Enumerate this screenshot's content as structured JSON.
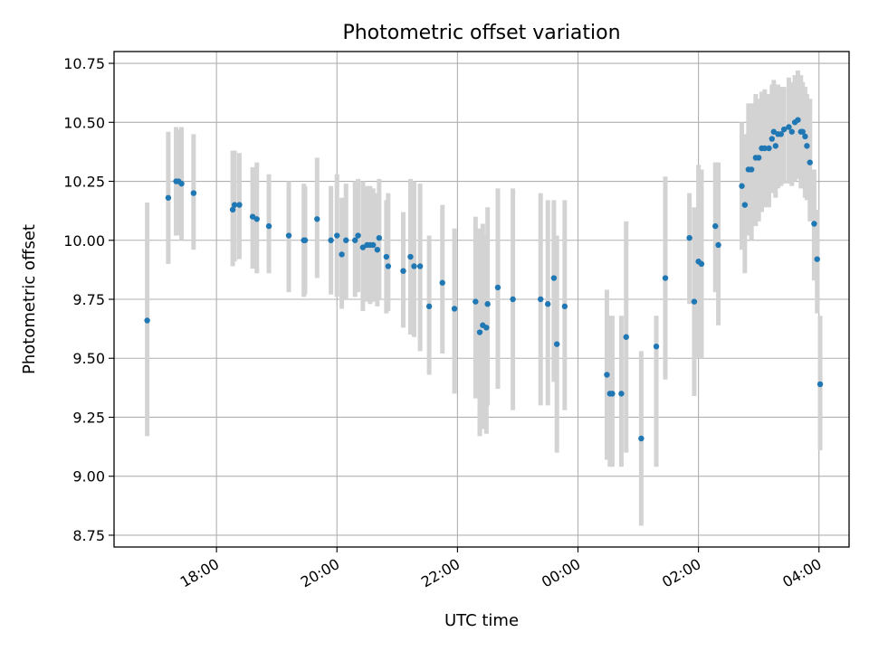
{
  "chart_data": {
    "type": "scatter",
    "title": "Photometric offset variation",
    "xlabel": "UTC time",
    "ylabel": "Photometric offset",
    "xlim_hours": [
      16.3,
      28.5
    ],
    "ylim": [
      8.7,
      10.8
    ],
    "x_ticks": [
      {
        "hour": 18,
        "label": "18:00"
      },
      {
        "hour": 20,
        "label": "20:00"
      },
      {
        "hour": 22,
        "label": "22:00"
      },
      {
        "hour": 24,
        "label": "00:00"
      },
      {
        "hour": 26,
        "label": "02:00"
      },
      {
        "hour": 28,
        "label": "04:00"
      }
    ],
    "y_ticks": [
      {
        "value": 8.75,
        "label": "8.75"
      },
      {
        "value": 9.0,
        "label": "9.00"
      },
      {
        "value": 9.25,
        "label": "9.25"
      },
      {
        "value": 9.5,
        "label": "9.50"
      },
      {
        "value": 9.75,
        "label": "9.75"
      },
      {
        "value": 10.0,
        "label": "10.00"
      },
      {
        "value": 10.25,
        "label": "10.25"
      },
      {
        "value": 10.5,
        "label": "10.50"
      },
      {
        "value": 10.75,
        "label": "10.75"
      }
    ],
    "grid": true,
    "marker_color": "#1f77b4",
    "errorbar_color": "#d3d3d3",
    "points": [
      {
        "t": 16.85,
        "y": 9.66,
        "lo": 9.17,
        "hi": 10.16
      },
      {
        "t": 17.2,
        "y": 10.18,
        "lo": 9.9,
        "hi": 10.46
      },
      {
        "t": 17.33,
        "y": 10.25,
        "lo": 10.02,
        "hi": 10.48
      },
      {
        "t": 17.37,
        "y": 10.25,
        "lo": 10.02,
        "hi": 10.47
      },
      {
        "t": 17.42,
        "y": 10.24,
        "lo": 10.0,
        "hi": 10.48
      },
      {
        "t": 17.62,
        "y": 10.2,
        "lo": 9.96,
        "hi": 10.45
      },
      {
        "t": 18.27,
        "y": 10.13,
        "lo": 9.89,
        "hi": 10.38
      },
      {
        "t": 18.3,
        "y": 10.15,
        "lo": 9.91,
        "hi": 10.38
      },
      {
        "t": 18.38,
        "y": 10.15,
        "lo": 9.92,
        "hi": 10.37
      },
      {
        "t": 18.6,
        "y": 10.1,
        "lo": 9.88,
        "hi": 10.31
      },
      {
        "t": 18.67,
        "y": 10.09,
        "lo": 9.86,
        "hi": 10.33
      },
      {
        "t": 18.87,
        "y": 10.06,
        "lo": 9.86,
        "hi": 10.28
      },
      {
        "t": 19.2,
        "y": 10.02,
        "lo": 9.78,
        "hi": 10.25
      },
      {
        "t": 19.45,
        "y": 10.0,
        "lo": 9.76,
        "hi": 10.24
      },
      {
        "t": 19.47,
        "y": 10.0,
        "lo": 9.77,
        "hi": 10.23
      },
      {
        "t": 19.67,
        "y": 10.09,
        "lo": 9.84,
        "hi": 10.35
      },
      {
        "t": 19.9,
        "y": 10.0,
        "lo": 9.77,
        "hi": 10.23
      },
      {
        "t": 20.0,
        "y": 10.02,
        "lo": 9.76,
        "hi": 10.28
      },
      {
        "t": 20.08,
        "y": 9.94,
        "lo": 9.71,
        "hi": 10.18
      },
      {
        "t": 20.15,
        "y": 10.0,
        "lo": 9.75,
        "hi": 10.24
      },
      {
        "t": 20.3,
        "y": 10.0,
        "lo": 9.76,
        "hi": 10.25
      },
      {
        "t": 20.35,
        "y": 10.02,
        "lo": 9.78,
        "hi": 10.26
      },
      {
        "t": 20.43,
        "y": 9.97,
        "lo": 9.7,
        "hi": 10.25
      },
      {
        "t": 20.5,
        "y": 9.98,
        "lo": 9.74,
        "hi": 10.23
      },
      {
        "t": 20.55,
        "y": 9.98,
        "lo": 9.73,
        "hi": 10.23
      },
      {
        "t": 20.6,
        "y": 9.98,
        "lo": 9.74,
        "hi": 10.22
      },
      {
        "t": 20.67,
        "y": 9.96,
        "lo": 9.72,
        "hi": 10.2
      },
      {
        "t": 20.7,
        "y": 10.01,
        "lo": 9.75,
        "hi": 10.26
      },
      {
        "t": 20.82,
        "y": 9.93,
        "lo": 9.69,
        "hi": 10.17
      },
      {
        "t": 20.85,
        "y": 9.89,
        "lo": 9.7,
        "hi": 10.2
      },
      {
        "t": 21.1,
        "y": 9.87,
        "lo": 9.63,
        "hi": 10.12
      },
      {
        "t": 21.22,
        "y": 9.93,
        "lo": 9.6,
        "hi": 10.26
      },
      {
        "t": 21.28,
        "y": 9.89,
        "lo": 9.59,
        "hi": 10.25
      },
      {
        "t": 21.38,
        "y": 9.89,
        "lo": 9.53,
        "hi": 10.24
      },
      {
        "t": 21.53,
        "y": 9.72,
        "lo": 9.43,
        "hi": 10.02
      },
      {
        "t": 21.75,
        "y": 9.82,
        "lo": 9.52,
        "hi": 10.15
      },
      {
        "t": 21.95,
        "y": 9.71,
        "lo": 9.35,
        "hi": 10.05
      },
      {
        "t": 22.3,
        "y": 9.74,
        "lo": 9.33,
        "hi": 10.1
      },
      {
        "t": 22.37,
        "y": 9.61,
        "lo": 9.17,
        "hi": 10.05
      },
      {
        "t": 22.42,
        "y": 9.64,
        "lo": 9.2,
        "hi": 10.07
      },
      {
        "t": 22.48,
        "y": 9.63,
        "lo": 9.18,
        "hi": 10.02
      },
      {
        "t": 22.5,
        "y": 9.73,
        "lo": 9.3,
        "hi": 10.14
      },
      {
        "t": 22.67,
        "y": 9.8,
        "lo": 9.37,
        "hi": 10.22
      },
      {
        "t": 22.92,
        "y": 9.75,
        "lo": 9.28,
        "hi": 10.22
      },
      {
        "t": 23.38,
        "y": 9.75,
        "lo": 9.3,
        "hi": 10.2
      },
      {
        "t": 23.5,
        "y": 9.73,
        "lo": 9.3,
        "hi": 10.17
      },
      {
        "t": 23.6,
        "y": 9.84,
        "lo": 9.4,
        "hi": 10.17
      },
      {
        "t": 23.65,
        "y": 9.56,
        "lo": 9.1,
        "hi": 10.02
      },
      {
        "t": 23.78,
        "y": 9.72,
        "lo": 9.28,
        "hi": 10.17
      },
      {
        "t": 24.48,
        "y": 9.43,
        "lo": 9.07,
        "hi": 9.79
      },
      {
        "t": 24.53,
        "y": 9.35,
        "lo": 9.04,
        "hi": 9.68
      },
      {
        "t": 24.57,
        "y": 9.35,
        "lo": 9.04,
        "hi": 9.68
      },
      {
        "t": 24.72,
        "y": 9.35,
        "lo": 9.04,
        "hi": 9.68
      },
      {
        "t": 24.8,
        "y": 9.59,
        "lo": 9.1,
        "hi": 10.08
      },
      {
        "t": 25.05,
        "y": 9.16,
        "lo": 8.79,
        "hi": 9.53
      },
      {
        "t": 25.3,
        "y": 9.55,
        "lo": 9.04,
        "hi": 9.68
      },
      {
        "t": 25.45,
        "y": 9.84,
        "lo": 9.41,
        "hi": 10.27
      },
      {
        "t": 25.85,
        "y": 10.01,
        "lo": 9.73,
        "hi": 10.2
      },
      {
        "t": 25.93,
        "y": 9.74,
        "lo": 9.34,
        "hi": 10.14
      },
      {
        "t": 26.0,
        "y": 9.91,
        "lo": 9.5,
        "hi": 10.32
      },
      {
        "t": 26.05,
        "y": 9.9,
        "lo": 9.5,
        "hi": 10.3
      },
      {
        "t": 26.28,
        "y": 10.06,
        "lo": 9.78,
        "hi": 10.33
      },
      {
        "t": 26.33,
        "y": 9.98,
        "lo": 9.64,
        "hi": 10.33
      },
      {
        "t": 26.72,
        "y": 10.23,
        "lo": 9.96,
        "hi": 10.5
      },
      {
        "t": 26.77,
        "y": 10.15,
        "lo": 9.86,
        "hi": 10.45
      },
      {
        "t": 26.83,
        "y": 10.3,
        "lo": 10.02,
        "hi": 10.58
      },
      {
        "t": 26.88,
        "y": 10.3,
        "lo": 10.0,
        "hi": 10.58
      },
      {
        "t": 26.95,
        "y": 10.35,
        "lo": 10.06,
        "hi": 10.62
      },
      {
        "t": 27.0,
        "y": 10.35,
        "lo": 10.08,
        "hi": 10.6
      },
      {
        "t": 27.05,
        "y": 10.39,
        "lo": 10.12,
        "hi": 10.63
      },
      {
        "t": 27.1,
        "y": 10.39,
        "lo": 10.14,
        "hi": 10.64
      },
      {
        "t": 27.17,
        "y": 10.39,
        "lo": 10.14,
        "hi": 10.62
      },
      {
        "t": 27.22,
        "y": 10.43,
        "lo": 10.2,
        "hi": 10.66
      },
      {
        "t": 27.25,
        "y": 10.46,
        "lo": 10.22,
        "hi": 10.68
      },
      {
        "t": 27.28,
        "y": 10.4,
        "lo": 10.18,
        "hi": 10.64
      },
      {
        "t": 27.32,
        "y": 10.45,
        "lo": 10.22,
        "hi": 10.66
      },
      {
        "t": 27.37,
        "y": 10.45,
        "lo": 10.23,
        "hi": 10.65
      },
      {
        "t": 27.42,
        "y": 10.47,
        "lo": 10.24,
        "hi": 10.65
      },
      {
        "t": 27.5,
        "y": 10.48,
        "lo": 10.24,
        "hi": 10.69
      },
      {
        "t": 27.55,
        "y": 10.46,
        "lo": 10.23,
        "hi": 10.67
      },
      {
        "t": 27.6,
        "y": 10.5,
        "lo": 10.25,
        "hi": 10.7
      },
      {
        "t": 27.65,
        "y": 10.51,
        "lo": 10.26,
        "hi": 10.72
      },
      {
        "t": 27.7,
        "y": 10.46,
        "lo": 10.22,
        "hi": 10.7
      },
      {
        "t": 27.73,
        "y": 10.46,
        "lo": 10.22,
        "hi": 10.67
      },
      {
        "t": 27.77,
        "y": 10.44,
        "lo": 10.18,
        "hi": 10.65
      },
      {
        "t": 27.8,
        "y": 10.4,
        "lo": 10.17,
        "hi": 10.62
      },
      {
        "t": 27.85,
        "y": 10.33,
        "lo": 10.08,
        "hi": 10.6
      },
      {
        "t": 27.92,
        "y": 10.07,
        "lo": 9.83,
        "hi": 10.3
      },
      {
        "t": 27.97,
        "y": 9.92,
        "lo": 9.69,
        "hi": 10.13
      },
      {
        "t": 28.02,
        "y": 9.39,
        "lo": 9.11,
        "hi": 9.68
      }
    ]
  }
}
